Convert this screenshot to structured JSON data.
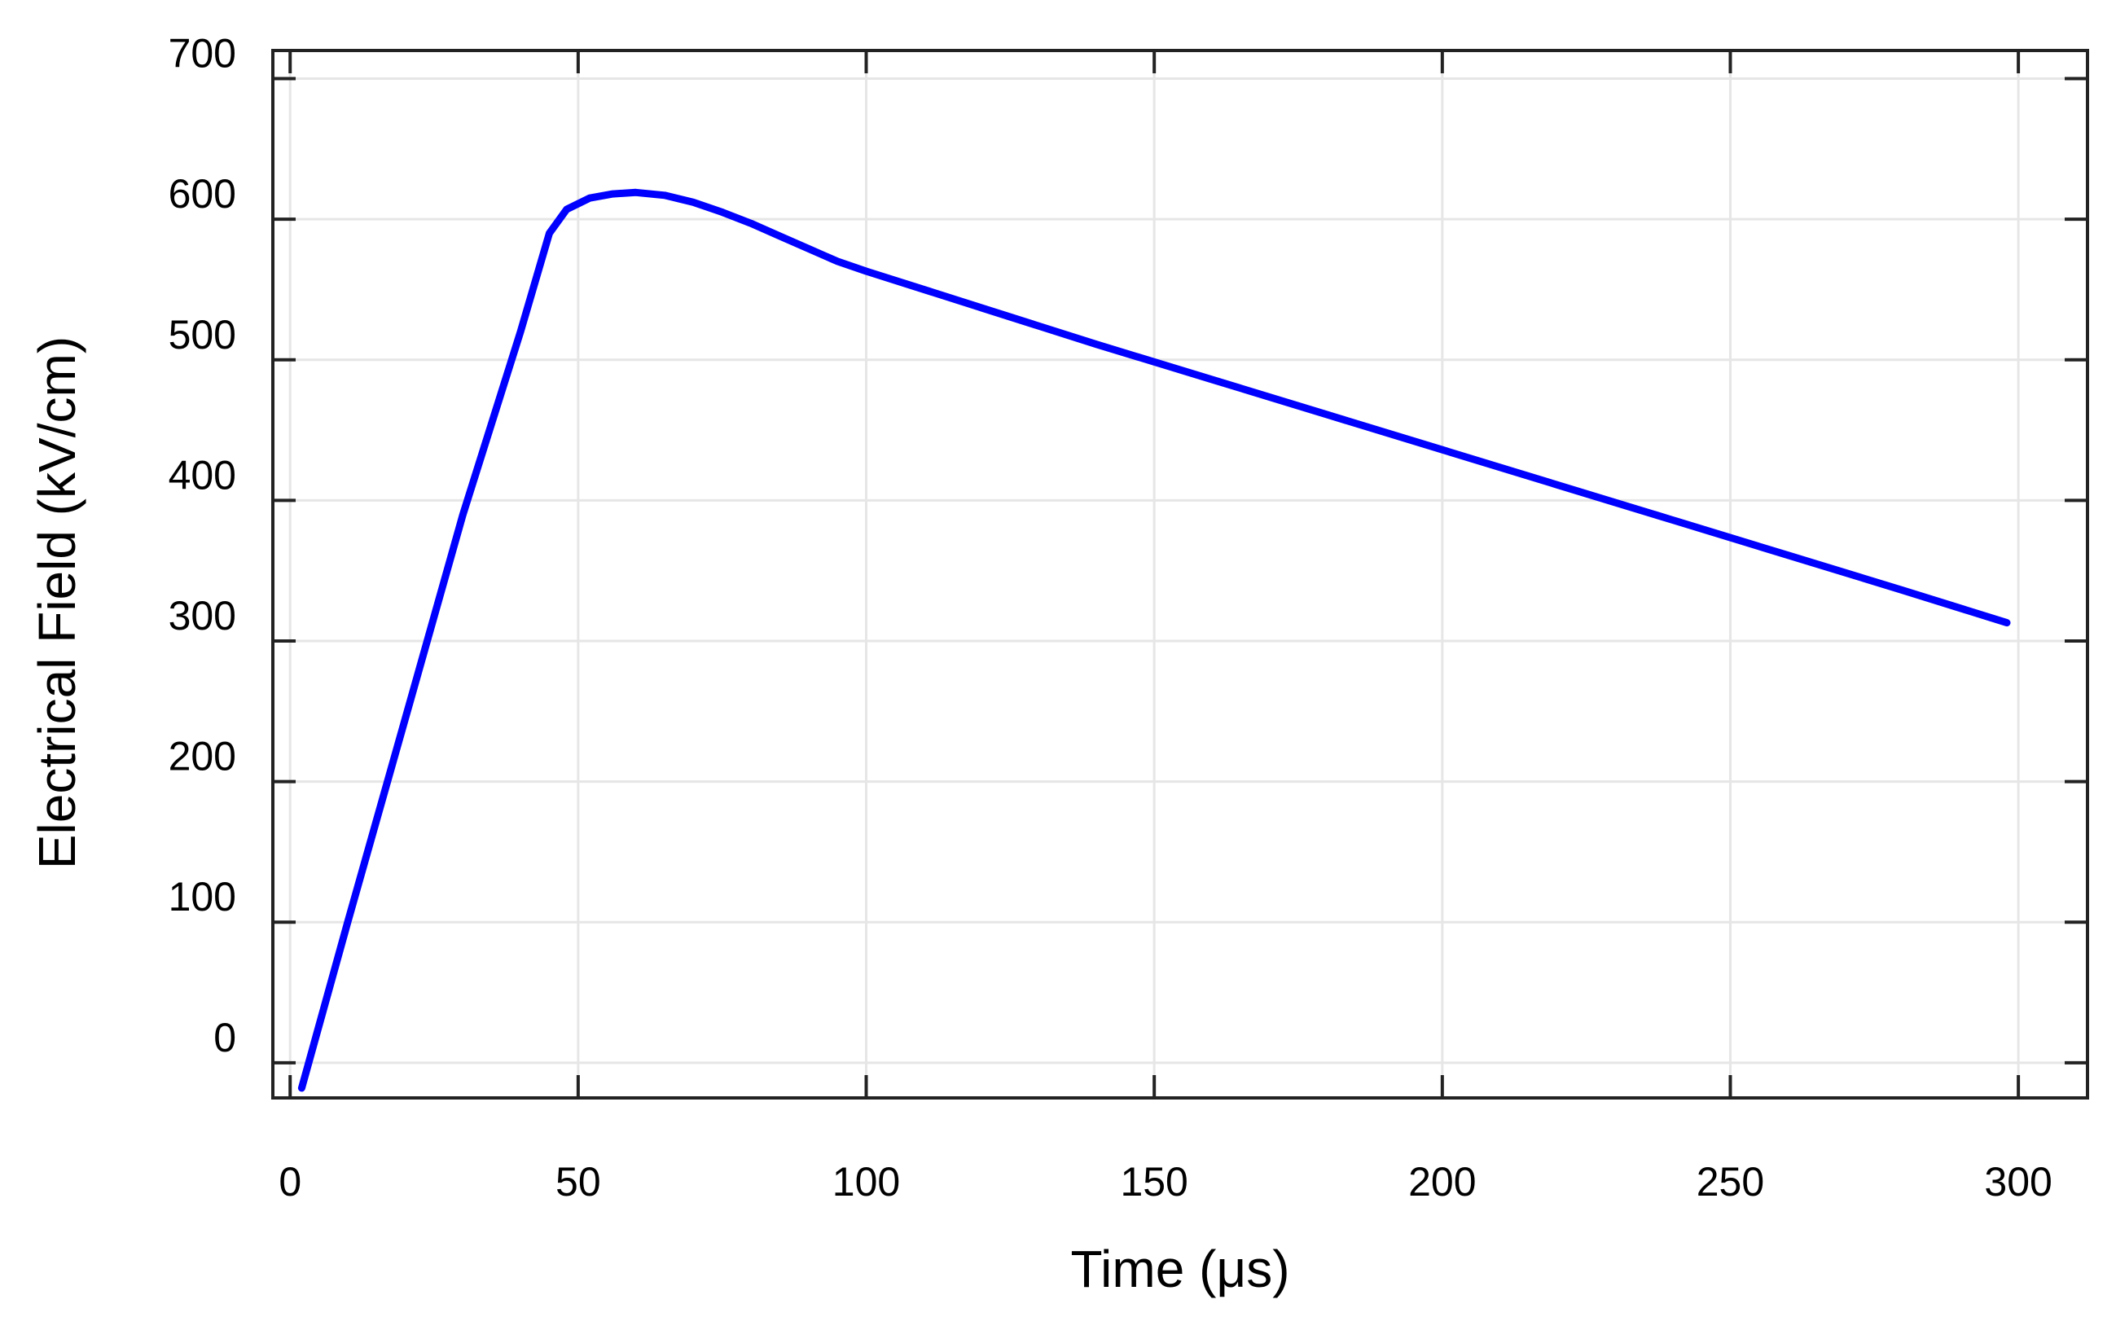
{
  "chart_data": {
    "type": "line",
    "xlabel": "Time (μs)",
    "ylabel": "Electrical Field (kV/cm)",
    "xlim": [
      -3,
      312
    ],
    "ylim": [
      -25,
      720
    ],
    "grid": true,
    "x_ticks": [
      0,
      50,
      100,
      150,
      200,
      250,
      300
    ],
    "y_ticks": [
      0,
      100,
      200,
      300,
      400,
      500,
      600,
      700
    ],
    "series": [
      {
        "color": "#0000ff",
        "x": [
          2,
          10,
          20,
          30,
          40,
          45,
          48,
          52,
          56,
          60,
          65,
          70,
          75,
          80,
          85,
          90,
          95,
          100,
          110,
          120,
          140,
          160,
          180,
          200,
          220,
          240,
          260,
          280,
          298
        ],
        "y": [
          -18,
          100,
          245,
          390,
          520,
          590,
          607,
          615,
          618,
          619,
          617,
          612,
          605,
          597,
          588,
          579,
          570,
          563,
          550,
          537,
          511,
          486,
          461,
          436,
          411,
          386,
          361,
          336,
          313
        ]
      }
    ]
  }
}
